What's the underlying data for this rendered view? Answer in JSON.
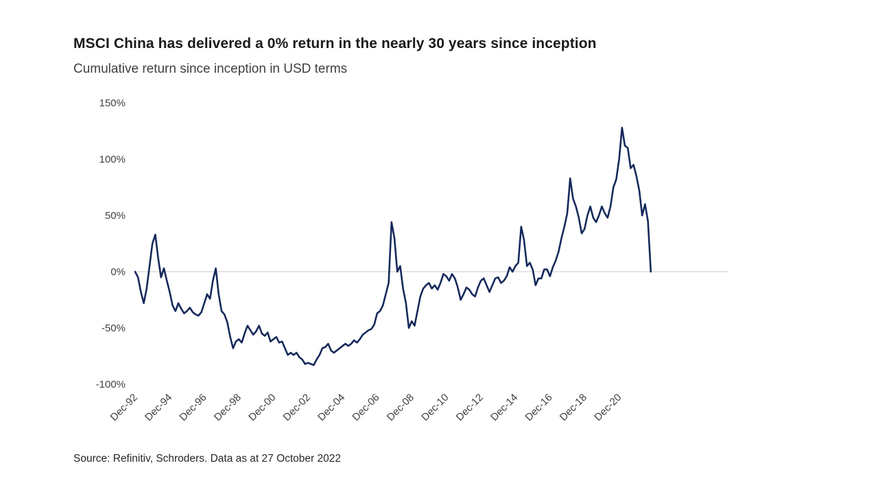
{
  "chart_data": {
    "type": "line",
    "title": "MSCI China has delivered a 0% return in the nearly 30 years since inception",
    "subtitle": "Cumulative return since inception in USD terms",
    "source": "Source: Refinitiv, Schroders. Data as at 27 October 2022",
    "series_name": "MSCI China cumulative return since inception (USD, %)",
    "x_start_label": "Dec-92",
    "x_end_label": "Oct-22",
    "step_months": 2,
    "x_tick_labels": [
      "Dec-92",
      "Dec-94",
      "Dec-96",
      "Dec-98",
      "Dec-00",
      "Dec-02",
      "Dec-04",
      "Dec-06",
      "Dec-08",
      "Dec-10",
      "Dec-12",
      "Dec-14",
      "Dec-16",
      "Dec-18",
      "Dec-20"
    ],
    "x_tick_months": [
      0,
      24,
      48,
      72,
      96,
      120,
      144,
      168,
      192,
      216,
      240,
      264,
      288,
      312,
      336
    ],
    "y_tick_labels": [
      "150%",
      "100%",
      "50%",
      "0%",
      "-50%",
      "-100%"
    ],
    "y_tick_values": [
      150,
      100,
      50,
      0,
      -50,
      -100
    ],
    "ylim": [
      -100,
      150
    ],
    "xlim_months": [
      0,
      358
    ],
    "grid": "zero-line-only",
    "legend": "none",
    "line_color": "#16295B",
    "zero_line_color": "#c9c9c9",
    "values_pct": [
      0,
      -5,
      -18,
      -28,
      -15,
      5,
      25,
      33,
      12,
      -5,
      3,
      -8,
      -18,
      -30,
      -35,
      -28,
      -33,
      -37,
      -35,
      -32,
      -36,
      -38,
      -39,
      -36,
      -28,
      -20,
      -24,
      -8,
      3,
      -20,
      -35,
      -38,
      -45,
      -58,
      -68,
      -62,
      -60,
      -63,
      -55,
      -48,
      -52,
      -56,
      -53,
      -48,
      -55,
      -57,
      -54,
      -62,
      -60,
      -58,
      -63,
      -62,
      -68,
      -74,
      -72,
      -74,
      -72,
      -76,
      -78,
      -82,
      -81,
      -82,
      -83,
      -78,
      -74,
      -68,
      -67,
      -64,
      -70,
      -72,
      -70,
      -68,
      -66,
      -64,
      -66,
      -64,
      -61,
      -63,
      -60,
      -56,
      -54,
      -52,
      -51,
      -47,
      -37,
      -35,
      -30,
      -20,
      -10,
      44,
      30,
      0,
      5,
      -15,
      -28,
      -50,
      -44,
      -48,
      -35,
      -22,
      -15,
      -12,
      -10,
      -15,
      -12,
      -16,
      -10,
      -2,
      -4,
      -8,
      -2,
      -6,
      -14,
      -25,
      -20,
      -14,
      -16,
      -20,
      -22,
      -14,
      -8,
      -6,
      -12,
      -18,
      -12,
      -6,
      -5,
      -10,
      -8,
      -4,
      4,
      0,
      5,
      8,
      40,
      28,
      5,
      8,
      2,
      -12,
      -6,
      -6,
      2,
      2,
      -4,
      4,
      10,
      18,
      30,
      40,
      52,
      83,
      65,
      58,
      48,
      34,
      38,
      50,
      58,
      48,
      44,
      50,
      58,
      52,
      48,
      58,
      75,
      82,
      100,
      128,
      112,
      110,
      92,
      95,
      85,
      72,
      50,
      60,
      45,
      0
    ]
  }
}
